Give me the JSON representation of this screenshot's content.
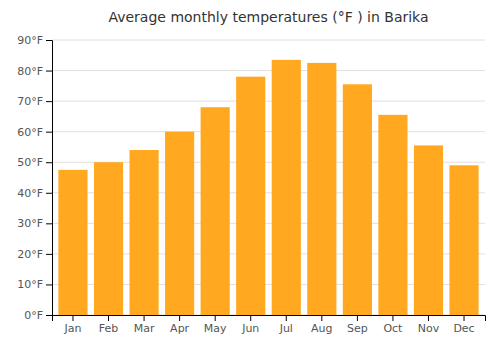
{
  "chart_data": {
    "type": "bar",
    "title": "Average monthly temperatures (°F ) in Barika",
    "categories": [
      "Jan",
      "Feb",
      "Mar",
      "Apr",
      "May",
      "Jun",
      "Jul",
      "Aug",
      "Sep",
      "Oct",
      "Nov",
      "Dec"
    ],
    "values": [
      47.5,
      50.0,
      54.0,
      60.0,
      68.0,
      78.0,
      83.5,
      82.5,
      75.5,
      65.5,
      55.5,
      49.0
    ],
    "color": "#FFA820",
    "ylim": [
      0,
      90
    ],
    "yticks": [
      {
        "value": 0,
        "label": "0°F"
      },
      {
        "value": 10,
        "label": "10°F"
      },
      {
        "value": 20,
        "label": "20°F"
      },
      {
        "value": 30,
        "label": "30°F"
      },
      {
        "value": 40,
        "label": "40°F"
      },
      {
        "value": 50,
        "label": "50°F"
      },
      {
        "value": 60,
        "label": "60°F"
      },
      {
        "value": 70,
        "label": "70°F"
      },
      {
        "value": 80,
        "label": "80°F"
      },
      {
        "value": 90,
        "label": "90°F"
      }
    ],
    "grid": true
  }
}
